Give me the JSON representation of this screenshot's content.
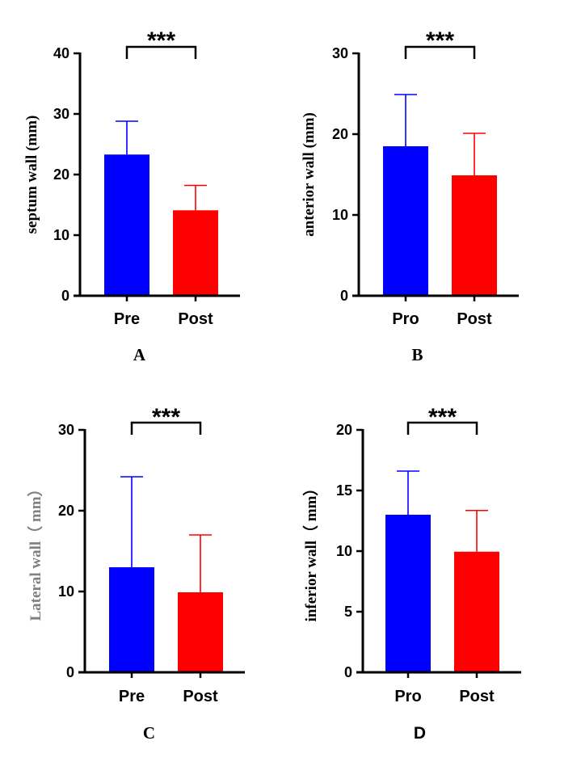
{
  "colors": {
    "pre": "#0000ff",
    "post": "#ff0000",
    "axis": "#000000",
    "muted_label": "#808080"
  },
  "chart_data": [
    {
      "type": "bar",
      "panel_label": "A",
      "ylabel": "septum wall (mm)",
      "categories": [
        "Pre",
        "Post"
      ],
      "values": [
        23.3,
        14.1
      ],
      "errors": [
        5.5,
        4.1
      ],
      "ylim": [
        0,
        40
      ],
      "yticks": [
        "0",
        "10",
        "20",
        "30",
        "40"
      ],
      "significance": "***"
    },
    {
      "type": "bar",
      "panel_label": "B",
      "ylabel": "anterior wall (mm)",
      "categories": [
        "Pro",
        "Post"
      ],
      "values": [
        18.5,
        14.9
      ],
      "errors": [
        6.4,
        5.2
      ],
      "ylim": [
        0,
        30
      ],
      "yticks": [
        "0",
        "10",
        "20",
        "30"
      ],
      "significance": "***"
    },
    {
      "type": "bar",
      "panel_label": "C",
      "ylabel": "Lateral wall（ mm）",
      "categories": [
        "Pre",
        "Post"
      ],
      "values": [
        13.0,
        9.9
      ],
      "errors": [
        11.2,
        7.1
      ],
      "ylim": [
        0,
        30
      ],
      "yticks": [
        "0",
        "10",
        "20",
        "30"
      ],
      "significance": "***"
    },
    {
      "type": "bar",
      "panel_label": "D",
      "ylabel": "inferior wall（ mm）",
      "categories": [
        "Pro",
        "Post"
      ],
      "values": [
        13.0,
        9.95
      ],
      "errors": [
        3.6,
        3.4
      ],
      "ylim": [
        0,
        20
      ],
      "yticks": [
        "0",
        "5",
        "10",
        "15",
        "20"
      ],
      "significance": "***"
    }
  ]
}
